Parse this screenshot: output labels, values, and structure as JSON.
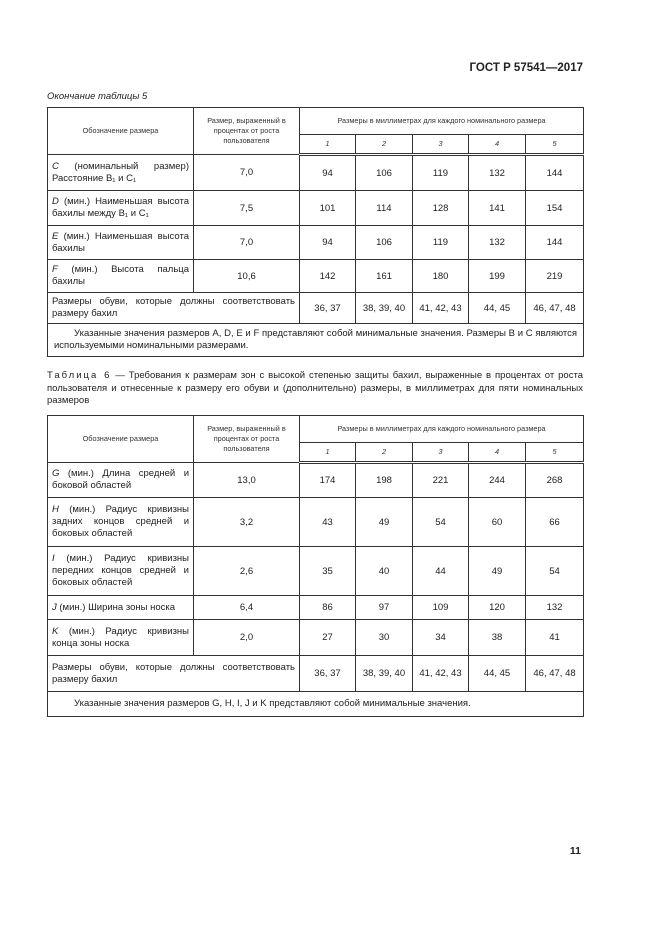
{
  "header": {
    "doc_code": "ГОСТ Р 57541—2017"
  },
  "table5": {
    "continuation": "Окончание таблицы 5",
    "col_designation": "Обозначение размера",
    "col_percent": "Размер, выраженный в процентах от роста пользователя",
    "col_mm": "Размеры в миллиметрах для каждого номинального размера",
    "sizes": [
      "1",
      "2",
      "3",
      "4",
      "5"
    ],
    "rows": [
      {
        "letter": "C",
        "label": " (номинальный размер) Расстояние B₁ и C₁",
        "percent": "7,0",
        "values": [
          "94",
          "106",
          "119",
          "132",
          "144"
        ]
      },
      {
        "letter": "D",
        "label": " (мин.) Наименьшая высота бахилы между B₁ и C₁",
        "percent": "7,5",
        "values": [
          "101",
          "114",
          "128",
          "141",
          "154"
        ]
      },
      {
        "letter": "E",
        "label": " (мин.) Наименьшая высота бахилы",
        "percent": "7,0",
        "values": [
          "94",
          "106",
          "119",
          "132",
          "144"
        ]
      },
      {
        "letter": "F",
        "label": " (мин.) Высота пальца бахилы",
        "percent": "10,6",
        "values": [
          "142",
          "161",
          "180",
          "199",
          "219"
        ]
      }
    ],
    "shoe_label": "Размеры обуви, которые должны соответствовать размеру бахил",
    "shoe_values": [
      "36, 37",
      "38, 39, 40",
      "41, 42, 43",
      "44, 45",
      "46, 47, 48"
    ],
    "note": "Указанные значения размеров A, D, E и F представляют собой минимальные значения. Размеры B и C являются используемыми номинальными размерами."
  },
  "table6": {
    "caption_prefix": "Таблица 6",
    "caption": " — Требования к размерам зон с высокой степенью защиты бахил, выраженные в процентах от роста пользователя и отнесенные к размеру его обуви и (дополнительно) размеры, в миллиметрах для пяти номинальных размеров",
    "col_designation": "Обозначение размера",
    "col_percent": "Размер, выраженный в процентах от роста пользователя",
    "col_mm": "Размеры в миллиметрах для каждого номинального размера",
    "sizes": [
      "1",
      "2",
      "3",
      "4",
      "5"
    ],
    "rows": [
      {
        "letter": "G",
        "label": " (мин.) Длина средней и боковой областей",
        "percent": "13,0",
        "values": [
          "174",
          "198",
          "221",
          "244",
          "268"
        ]
      },
      {
        "letter": "H",
        "label": " (мин.) Радиус кривизны задних концов средней и боковых областей",
        "percent": "3,2",
        "values": [
          "43",
          "49",
          "54",
          "60",
          "66"
        ]
      },
      {
        "letter": "I",
        "label": " (мин.) Радиус кривизны передних концов средней и боковых областей",
        "percent": "2,6",
        "values": [
          "35",
          "40",
          "44",
          "49",
          "54"
        ]
      },
      {
        "letter": "J",
        "label": " (мин.) Ширина зоны носка",
        "percent": "6,4",
        "values": [
          "86",
          "97",
          "109",
          "120",
          "132"
        ]
      },
      {
        "letter": "K",
        "label": " (мин.) Радиус кривизны конца зоны носка",
        "percent": "2,0",
        "values": [
          "27",
          "30",
          "34",
          "38",
          "41"
        ]
      }
    ],
    "shoe_label": "Размеры обуви, которые должны соответствовать размеру бахил",
    "shoe_values": [
      "36, 37",
      "38, 39, 40",
      "41, 42, 43",
      "44, 45",
      "46, 47, 48"
    ],
    "note": "Указанные значения размеров G, H, I, J и K представляют собой минимальные значения."
  },
  "footer": {
    "page_number": "11"
  }
}
